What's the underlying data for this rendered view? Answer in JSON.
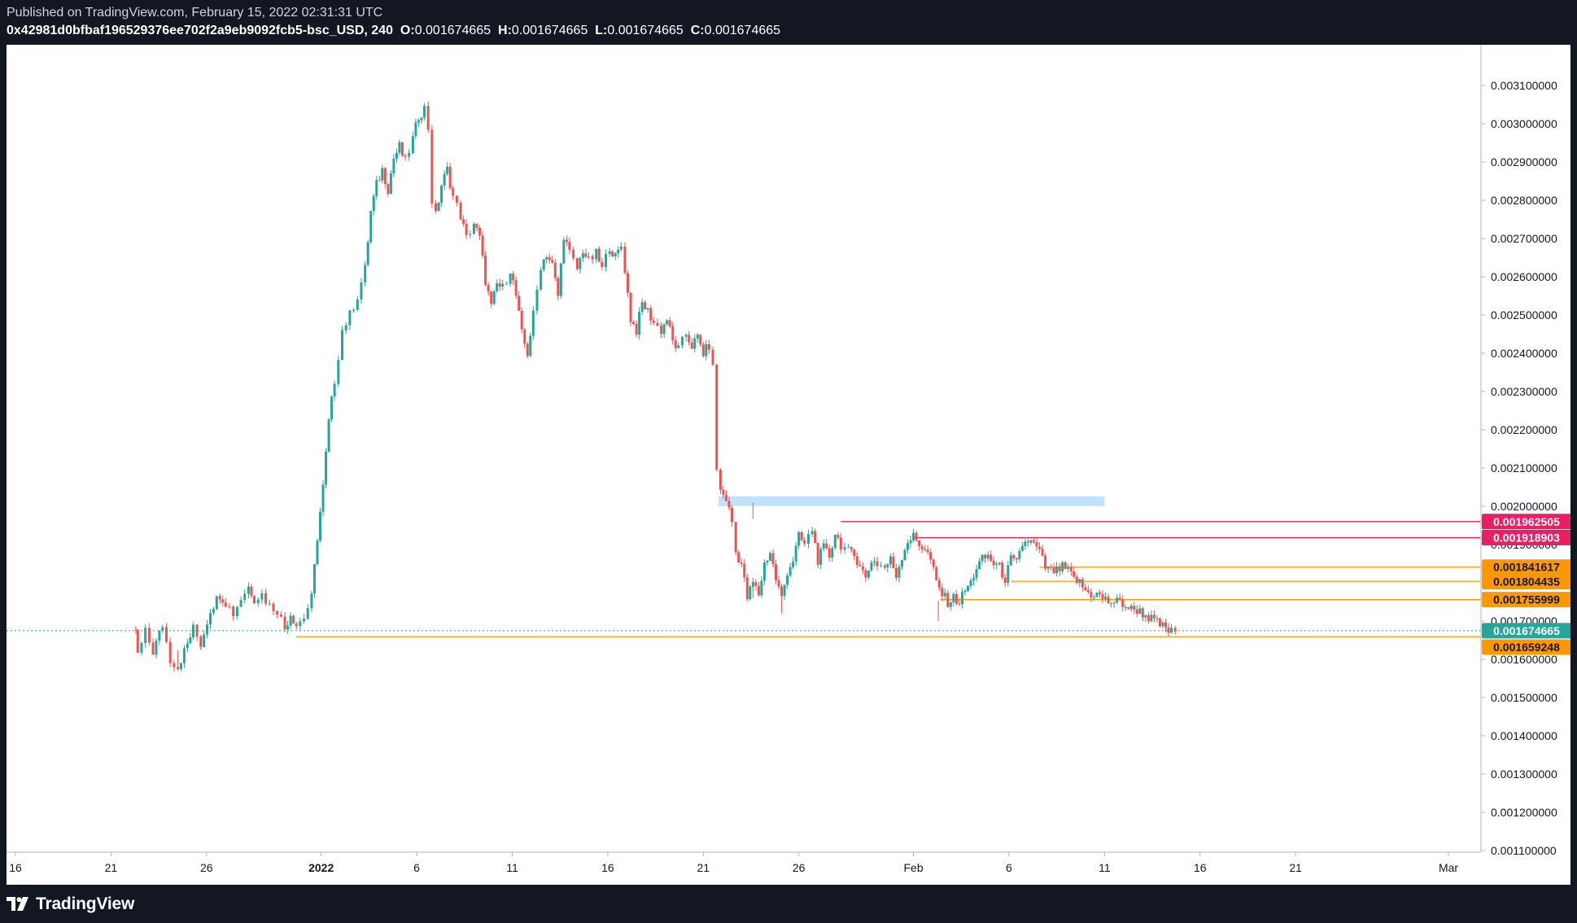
{
  "header": {
    "published": "Published on TradingView.com, February 15, 2022 02:31:31 UTC",
    "symbol": "0x42981d0bfbaf196529376ee702f2a9eb9092fcb5-bsc_USD, 240",
    "ohlc": [
      {
        "key": "O:",
        "value": "0.001674665"
      },
      {
        "key": "H:",
        "value": "0.001674665"
      },
      {
        "key": "L:",
        "value": "0.001674665"
      },
      {
        "key": "C:",
        "value": "0.001674665"
      }
    ]
  },
  "footer": {
    "brand": "TradingView"
  },
  "colors": {
    "up": "#26a69a",
    "down": "#ef5350",
    "pink": "#e91e63",
    "orange": "#ff9800",
    "teal": "#26a69a",
    "zone": "#bbdefb",
    "background": "#131722",
    "panel": "#ffffff"
  },
  "chart_data": {
    "type": "candlestick",
    "timeframe": "240",
    "ylim": [
      0.00105,
      0.0032
    ],
    "y_ticks": [
      "0.003100000",
      "0.003000000",
      "0.002900000",
      "0.002800000",
      "0.002700000",
      "0.002600000",
      "0.002500000",
      "0.002400000",
      "0.002300000",
      "0.002200000",
      "0.002100000",
      "0.002000000",
      "0.001900000",
      "0.001700000",
      "0.001600000",
      "0.001500000",
      "0.001400000",
      "0.001300000",
      "0.001200000",
      "0.001100000"
    ],
    "x_ticks": [
      "16",
      "21",
      "26",
      "2022",
      "6",
      "11",
      "16",
      "21",
      "26",
      "Feb",
      "6",
      "11",
      "16",
      "21",
      "Mar"
    ],
    "x_tick_days": [
      -16,
      -11,
      -6,
      0,
      5,
      10,
      15,
      20,
      25,
      31,
      36,
      41,
      46,
      51,
      59
    ],
    "x_range_days": [
      -16.2,
      62
    ],
    "last_day": 44.7,
    "last_price": 0.001674665,
    "close_path": [
      [
        -16.2,
        0.001678
      ],
      [
        -9.7,
        0.001678
      ],
      [
        -9.6,
        0.00161
      ],
      [
        -9.2,
        0.00167
      ],
      [
        -8.8,
        0.00162
      ],
      [
        -8.3,
        0.00169
      ],
      [
        -7.9,
        0.0016
      ],
      [
        -7.5,
        0.00158
      ],
      [
        -7.0,
        0.00164
      ],
      [
        -6.7,
        0.00168
      ],
      [
        -6.3,
        0.00164
      ],
      [
        -5.8,
        0.00173
      ],
      [
        -5.3,
        0.00177
      ],
      [
        -5.0,
        0.00175
      ],
      [
        -4.6,
        0.00172
      ],
      [
        -4.2,
        0.00176
      ],
      [
        -3.8,
        0.00179
      ],
      [
        -3.5,
        0.00176
      ],
      [
        -3.1,
        0.00177
      ],
      [
        -2.7,
        0.00174
      ],
      [
        -2.3,
        0.00173
      ],
      [
        -1.9,
        0.00168
      ],
      [
        -1.6,
        0.00172
      ],
      [
        -1.3,
        0.00169
      ],
      [
        -0.9,
        0.00171
      ],
      [
        -0.5,
        0.00176
      ],
      [
        -0.2,
        0.00192
      ],
      [
        0.1,
        0.00205
      ],
      [
        0.4,
        0.00222
      ],
      [
        0.7,
        0.00233
      ],
      [
        1.1,
        0.00246
      ],
      [
        1.5,
        0.0025
      ],
      [
        1.9,
        0.00255
      ],
      [
        2.3,
        0.00262
      ],
      [
        2.6,
        0.00277
      ],
      [
        2.9,
        0.00284
      ],
      [
        3.2,
        0.00288
      ],
      [
        3.5,
        0.00283
      ],
      [
        3.8,
        0.00291
      ],
      [
        4.1,
        0.00294
      ],
      [
        4.4,
        0.0029
      ],
      [
        4.8,
        0.00296
      ],
      [
        5.1,
        0.00302
      ],
      [
        5.4,
        0.00304
      ],
      [
        5.6,
        0.00299
      ],
      [
        5.8,
        0.0028
      ],
      [
        6.0,
        0.00276
      ],
      [
        6.3,
        0.00284
      ],
      [
        6.6,
        0.00288
      ],
      [
        6.9,
        0.00281
      ],
      [
        7.3,
        0.00276
      ],
      [
        7.6,
        0.0027
      ],
      [
        8.0,
        0.00274
      ],
      [
        8.3,
        0.0027
      ],
      [
        8.6,
        0.00259
      ],
      [
        8.9,
        0.00252
      ],
      [
        9.2,
        0.00258
      ],
      [
        9.5,
        0.00257
      ],
      [
        9.9,
        0.00262
      ],
      [
        10.2,
        0.00255
      ],
      [
        10.5,
        0.00245
      ],
      [
        10.8,
        0.0024
      ],
      [
        11.1,
        0.0025
      ],
      [
        11.5,
        0.00263
      ],
      [
        11.8,
        0.00266
      ],
      [
        12.1,
        0.00263
      ],
      [
        12.4,
        0.00255
      ],
      [
        12.7,
        0.00271
      ],
      [
        13.0,
        0.00266
      ],
      [
        13.4,
        0.00262
      ],
      [
        13.7,
        0.00267
      ],
      [
        14.0,
        0.00264
      ],
      [
        14.4,
        0.00266
      ],
      [
        14.7,
        0.00262
      ],
      [
        15.1,
        0.00268
      ],
      [
        15.4,
        0.00265
      ],
      [
        15.7,
        0.00268
      ],
      [
        15.9,
        0.00262
      ],
      [
        16.2,
        0.00249
      ],
      [
        16.5,
        0.00246
      ],
      [
        16.8,
        0.00253
      ],
      [
        17.1,
        0.00251
      ],
      [
        17.4,
        0.00248
      ],
      [
        17.8,
        0.00246
      ],
      [
        18.1,
        0.00249
      ],
      [
        18.4,
        0.00243
      ],
      [
        18.7,
        0.00241
      ],
      [
        19.1,
        0.00245
      ],
      [
        19.4,
        0.00242
      ],
      [
        19.7,
        0.00244
      ],
      [
        20.0,
        0.0024
      ],
      [
        20.3,
        0.00242
      ],
      [
        20.5,
        0.00236
      ],
      [
        20.7,
        0.0021
      ],
      [
        20.9,
        0.00204
      ],
      [
        21.2,
        0.00202
      ],
      [
        21.5,
        0.00196
      ],
      [
        21.7,
        0.00188
      ],
      [
        22.0,
        0.00185
      ],
      [
        22.3,
        0.00176
      ],
      [
        22.6,
        0.0018
      ],
      [
        22.9,
        0.00177
      ],
      [
        23.2,
        0.00185
      ],
      [
        23.5,
        0.00188
      ],
      [
        23.8,
        0.00181
      ],
      [
        24.1,
        0.00176
      ],
      [
        24.4,
        0.00183
      ],
      [
        24.7,
        0.00186
      ],
      [
        25.0,
        0.00192
      ],
      [
        25.3,
        0.0019
      ],
      [
        25.7,
        0.00194
      ],
      [
        26.0,
        0.00186
      ],
      [
        26.3,
        0.00189
      ],
      [
        26.6,
        0.00187
      ],
      [
        26.9,
        0.00193
      ],
      [
        27.2,
        0.0019
      ],
      [
        27.6,
        0.00188
      ],
      [
        27.9,
        0.00187
      ],
      [
        28.2,
        0.00185
      ],
      [
        28.5,
        0.00181
      ],
      [
        28.8,
        0.00186
      ],
      [
        29.1,
        0.00185
      ],
      [
        29.5,
        0.00184
      ],
      [
        29.8,
        0.00186
      ],
      [
        30.1,
        0.00182
      ],
      [
        30.4,
        0.00187
      ],
      [
        30.7,
        0.00191
      ],
      [
        31.0,
        0.00192
      ],
      [
        31.3,
        0.0019
      ],
      [
        31.6,
        0.00189
      ],
      [
        31.9,
        0.00186
      ],
      [
        32.2,
        0.0018
      ],
      [
        32.5,
        0.00177
      ],
      [
        32.8,
        0.00175
      ],
      [
        33.1,
        0.00176
      ],
      [
        33.4,
        0.00175
      ],
      [
        33.7,
        0.00178
      ],
      [
        34.0,
        0.0018
      ],
      [
        34.3,
        0.00184
      ],
      [
        34.6,
        0.00186
      ],
      [
        34.9,
        0.00187
      ],
      [
        35.2,
        0.00185
      ],
      [
        35.5,
        0.00184
      ],
      [
        35.8,
        0.00181
      ],
      [
        36.1,
        0.00186
      ],
      [
        36.4,
        0.00185
      ],
      [
        36.7,
        0.0019
      ],
      [
        37.0,
        0.00191
      ],
      [
        37.3,
        0.0019
      ],
      [
        37.6,
        0.00188
      ],
      [
        37.9,
        0.00184
      ],
      [
        38.2,
        0.00183
      ],
      [
        38.5,
        0.00183
      ],
      [
        38.8,
        0.00184
      ],
      [
        39.1,
        0.00183
      ],
      [
        39.4,
        0.00181
      ],
      [
        39.7,
        0.0018
      ],
      [
        40.0,
        0.00178
      ],
      [
        40.3,
        0.00177
      ],
      [
        40.6,
        0.00177
      ],
      [
        40.9,
        0.00176
      ],
      [
        41.2,
        0.00175
      ],
      [
        41.5,
        0.00175
      ],
      [
        41.8,
        0.00175
      ],
      [
        42.1,
        0.00174
      ],
      [
        42.4,
        0.00173
      ],
      [
        42.7,
        0.00173
      ],
      [
        43.0,
        0.00172
      ],
      [
        43.3,
        0.00171
      ],
      [
        43.6,
        0.0017
      ],
      [
        43.9,
        0.00169
      ],
      [
        44.2,
        0.00168
      ],
      [
        44.5,
        0.00167
      ],
      [
        44.7,
        0.001674665
      ]
    ],
    "marked_extremes": [
      {
        "day": 5.4,
        "high": 0.00305
      },
      {
        "day": 22.6,
        "high": 0.00201,
        "low": 0.00176
      },
      {
        "day": 24.1,
        "low": 0.00172
      },
      {
        "day": 32.3,
        "low": 0.0017
      },
      {
        "day": -7.5,
        "low": 0.00157
      }
    ],
    "zone": {
      "from_day": 20.8,
      "to_day": 41.0,
      "top": 0.002026,
      "bottom": 0.002003
    },
    "horizontal_levels": [
      {
        "value": 0.00196,
        "from_day": 27.2,
        "color": "pink",
        "label": "0.001962505"
      },
      {
        "value": 0.001918,
        "from_day": 31.0,
        "color": "pink",
        "label": "0.001918903"
      },
      {
        "value": 0.001841,
        "from_day": 37.6,
        "color": "orange",
        "label": "0.001841617"
      },
      {
        "value": 0.001804,
        "from_day": 36.1,
        "color": "orange",
        "label": "0.001804435"
      },
      {
        "value": 0.001756,
        "from_day": 32.4,
        "color": "orange",
        "label": "0.001755999"
      },
      {
        "value": 0.001659,
        "from_day": -1.3,
        "color": "orange",
        "label": "0.001659248"
      }
    ],
    "last_price_label": "0.001674665"
  }
}
